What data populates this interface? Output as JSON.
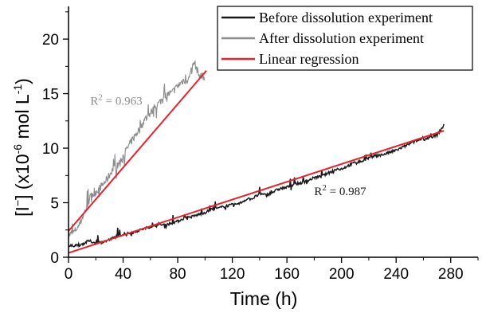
{
  "chart_data": {
    "type": "line",
    "xlabel": "Time (h)",
    "ylabel_parts": {
      "main": "[I",
      "minus": "−",
      "close": "] (x10",
      "exp": "-6",
      "tail": " mol L",
      "exp2": "-1",
      "end": ")"
    },
    "xlim": [
      0,
      300
    ],
    "ylim": [
      0,
      23
    ],
    "x_ticks": [
      0,
      40,
      80,
      120,
      160,
      200,
      240,
      280
    ],
    "y_ticks": [
      0,
      5,
      10,
      15,
      20
    ],
    "legend": [
      {
        "label": "Before dissolution experiment",
        "color": "#1a1a1a"
      },
      {
        "label": "After dissolution experiment",
        "color": "#8c8c8c"
      },
      {
        "label": "Linear regression",
        "color": "#e8222b"
      }
    ],
    "annotations": [
      {
        "prefix": "R",
        "sup": "2",
        "suffix": " = 0.963",
        "color": "#8c8c8c",
        "x": 16,
        "y": 14
      },
      {
        "prefix": "R",
        "sup": "2",
        "suffix": " = 0.987",
        "color": "#1a1a1a",
        "x": 180,
        "y": 5.7
      }
    ],
    "series": [
      {
        "name": "Before dissolution experiment",
        "color": "#1a1a1a",
        "x": [
          0,
          5,
          10,
          15,
          20,
          25,
          30,
          35,
          40,
          45,
          50,
          55,
          60,
          65,
          70,
          75,
          80,
          85,
          90,
          95,
          100,
          105,
          110,
          115,
          120,
          125,
          130,
          135,
          140,
          145,
          150,
          155,
          160,
          165,
          170,
          175,
          180,
          185,
          190,
          195,
          200,
          205,
          210,
          215,
          220,
          225,
          230,
          235,
          240,
          245,
          250,
          255,
          260,
          265,
          270,
          275
        ],
        "y": [
          1.0,
          1.1,
          1.2,
          1.5,
          1.3,
          1.4,
          1.6,
          1.9,
          2.1,
          2.2,
          2.4,
          2.6,
          2.8,
          2.9,
          3.0,
          3.1,
          3.3,
          3.6,
          3.7,
          3.9,
          4.1,
          4.4,
          4.5,
          4.7,
          4.8,
          4.9,
          5.3,
          5.4,
          5.8,
          5.7,
          6.0,
          6.3,
          6.4,
          6.7,
          6.8,
          7.0,
          7.3,
          7.4,
          7.7,
          8.0,
          8.1,
          8.4,
          8.7,
          8.8,
          9.1,
          9.3,
          9.4,
          9.6,
          9.8,
          10.1,
          10.4,
          10.7,
          10.8,
          11.0,
          11.2,
          12.1
        ]
      },
      {
        "name": "After dissolution experiment",
        "color": "#8c8c8c",
        "x": [
          0,
          4,
          8,
          12,
          16,
          20,
          24,
          28,
          32,
          36,
          40,
          44,
          48,
          52,
          56,
          60,
          64,
          68,
          72,
          76,
          80,
          84,
          88,
          92,
          96,
          100
        ],
        "y": [
          2.0,
          2.3,
          3.0,
          4.2,
          5.5,
          6.0,
          6.5,
          7.1,
          8.0,
          8.4,
          9.3,
          10.2,
          11.0,
          11.8,
          12.6,
          13.2,
          13.8,
          14.4,
          14.9,
          15.1,
          15.7,
          16.2,
          16.3,
          17.9,
          16.6,
          16.5
        ]
      },
      {
        "name": "Linear regression",
        "color": "#e8222b",
        "segments": [
          {
            "x": [
              0,
              275
            ],
            "y": [
              0.4,
              11.6
            ]
          },
          {
            "x": [
              0,
              101
            ],
            "y": [
              2.4,
              17.1
            ]
          }
        ]
      }
    ]
  }
}
